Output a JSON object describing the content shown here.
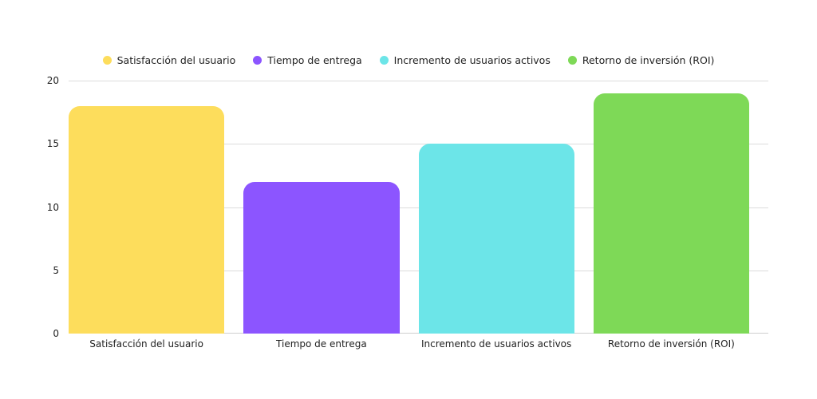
{
  "chart_data": {
    "type": "bar",
    "title": "",
    "xlabel": "",
    "ylabel": "",
    "ylim": [
      0,
      20
    ],
    "yticks": [
      0,
      5,
      10,
      15,
      20
    ],
    "grid": true,
    "legend_position": "top",
    "categories": [
      "Satisfacción del usuario",
      "Tiempo de entrega",
      "Incremento de usuarios activos",
      "Retorno de inversión (ROI)"
    ],
    "values": [
      18,
      12,
      15,
      19
    ],
    "colors": [
      "#FDDD5C",
      "#8C55FF",
      "#6CE5E8",
      "#7ED957"
    ],
    "legend": [
      "Satisfacción del usuario",
      "Tiempo de entrega",
      "Incremento de usuarios activos",
      "Retorno de inversión (ROI)"
    ]
  }
}
